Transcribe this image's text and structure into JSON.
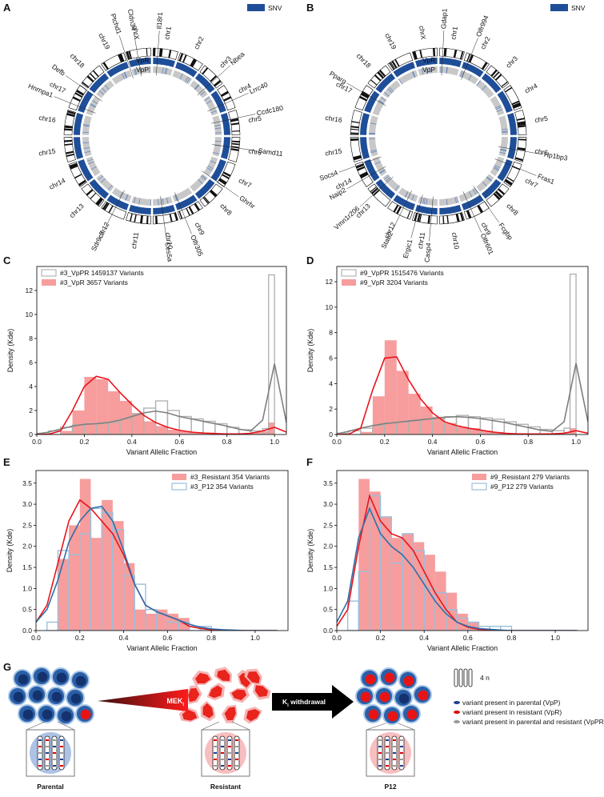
{
  "circos": [
    {
      "label": "A",
      "legend": "SNV",
      "tracks": [
        "VpR",
        "VpP"
      ],
      "chromosomes": [
        "chr1",
        "chr2",
        "chr3",
        "chr4",
        "chr5",
        "chr6",
        "chr7",
        "chr8",
        "chr9",
        "chr10",
        "chr11",
        "chr12",
        "chr13",
        "chr14",
        "chr15",
        "chr16",
        "chr17",
        "chr18",
        "chr19",
        "chrX"
      ],
      "genes": [
        "Il18r1",
        "Nbea",
        "Lrrc40",
        "Ccdc180",
        "Samd11",
        "Ghrhr",
        "Olfr305",
        "Ces5a",
        "Sdr9c7",
        "Hnrnpa1",
        "Defb",
        "Ptchd1",
        "Cldn34"
      ]
    },
    {
      "label": "B",
      "legend": "SNV",
      "tracks": [
        "VpR",
        "VpP"
      ],
      "chromosomes": [
        "chr1",
        "chr2",
        "chr3",
        "chr4",
        "chr5",
        "chr6",
        "chr7",
        "chr8",
        "chr9",
        "chr10",
        "chr11",
        "chr12",
        "chr13",
        "chr14",
        "chr15",
        "chr16",
        "chr17",
        "chr18",
        "chr19",
        "chrX"
      ],
      "genes": [
        "Gdap1",
        "Olfr994",
        "Hp1bp3",
        "Fras1",
        "Fcgbp",
        "Olfr601",
        "Casp4",
        "Ergic1",
        "Stab2",
        "Vmn1r206",
        "Naip2",
        "Socs4",
        "Pparg"
      ]
    }
  ],
  "chart_data": [
    {
      "type": "histogram",
      "label": "C",
      "xlabel": "Variant Allelic Fraction",
      "ylabel": "Density (Kde)",
      "xlim": [
        0,
        1.05
      ],
      "xticks": [
        {
          "value": 0,
          "label": "0.0"
        },
        0.2,
        0.4,
        0.6,
        0.8,
        {
          "value": 1,
          "label": "1.0"
        }
      ],
      "ylim": [
        0,
        14
      ],
      "yticks": [
        0,
        2,
        4,
        6,
        8,
        10,
        12
      ],
      "legend": "upper left",
      "bins": [
        0,
        0.05,
        0.1,
        0.15,
        0.2,
        0.25,
        0.3,
        0.35,
        0.4,
        0.45,
        0.5,
        0.55,
        0.6,
        0.65,
        0.7,
        0.75,
        0.8,
        0.85,
        0.9,
        0.95,
        0.975,
        1.0
      ],
      "series": [
        {
          "name": "#3_VpPR 1459137 Variants",
          "color": "#b3b3b3",
          "style": "step",
          "values": [
            0.1,
            0.3,
            0.6,
            0.8,
            0.9,
            0.9,
            1.0,
            1.3,
            1.7,
            2.2,
            2.8,
            2.0,
            1.5,
            1.3,
            1.1,
            0.9,
            0.6,
            0.4,
            0.3,
            0.5,
            13.3
          ]
        },
        {
          "name": "#3_VpR 3657 Variants",
          "color": "#f47c7c",
          "style": "filled",
          "values": [
            0,
            0,
            0.3,
            2.0,
            4.8,
            4.6,
            3.6,
            2.8,
            1.8,
            1.1,
            0.7,
            0.4,
            0.3,
            0.2,
            0.15,
            0.1,
            0.1,
            0.1,
            0.2,
            0.3,
            1.0
          ]
        }
      ],
      "kde_x": [
        0,
        0.05,
        0.1,
        0.15,
        0.2,
        0.25,
        0.3,
        0.35,
        0.4,
        0.45,
        0.5,
        0.55,
        0.6,
        0.65,
        0.7,
        0.75,
        0.8,
        0.85,
        0.9,
        0.95,
        1.0,
        1.05,
        1.1
      ],
      "kde": [
        {
          "color": "#7f7f7f",
          "values": [
            0.05,
            0.2,
            0.45,
            0.7,
            0.85,
            0.9,
            1.0,
            1.2,
            1.5,
            1.8,
            1.95,
            1.8,
            1.5,
            1.3,
            1.1,
            0.9,
            0.7,
            0.45,
            0.3,
            1.2,
            5.9,
            1.0,
            0.05
          ]
        },
        {
          "color": "#e8141c",
          "values": [
            0,
            0.02,
            0.3,
            2.0,
            4.0,
            4.85,
            4.6,
            3.5,
            2.5,
            1.6,
            1.0,
            0.6,
            0.35,
            0.2,
            0.12,
            0.08,
            0.05,
            0.05,
            0.1,
            0.3,
            0.6,
            0.2,
            0
          ]
        }
      ]
    },
    {
      "type": "histogram",
      "label": "D",
      "xlabel": "Variant Allelic Fraction",
      "ylabel": "Density (Kde)",
      "xlim": [
        0,
        1.05
      ],
      "xticks": [
        {
          "value": 0,
          "label": "0.0"
        },
        0.2,
        0.4,
        0.6,
        0.8,
        {
          "value": 1,
          "label": "1.0"
        }
      ],
      "ylim": [
        0,
        13.2
      ],
      "yticks": [
        0,
        2,
        4,
        6,
        8,
        10,
        12
      ],
      "legend": "upper left",
      "bins": [
        0,
        0.05,
        0.1,
        0.15,
        0.2,
        0.25,
        0.3,
        0.35,
        0.4,
        0.45,
        0.5,
        0.55,
        0.6,
        0.65,
        0.7,
        0.75,
        0.8,
        0.85,
        0.9,
        0.95,
        0.975,
        1.0
      ],
      "series": [
        {
          "name": "#9_VpPR 1515476 Variants",
          "color": "#b3b3b3",
          "style": "step",
          "values": [
            0.1,
            0.3,
            0.5,
            0.7,
            0.9,
            1.0,
            1.1,
            1.2,
            1.3,
            1.4,
            1.5,
            1.4,
            1.3,
            1.2,
            1.0,
            0.8,
            0.6,
            0.4,
            0.3,
            0.5,
            12.6
          ]
        },
        {
          "name": "#9_VpR 3204 Variants",
          "color": "#f47c7c",
          "style": "filled",
          "values": [
            0,
            0,
            0.2,
            3.0,
            7.4,
            5.0,
            3.2,
            2.2,
            1.4,
            0.9,
            0.6,
            0.5,
            0.3,
            0.2,
            0.1,
            0.1,
            0.1,
            0.1,
            0.1,
            0.2,
            0.5
          ]
        }
      ],
      "kde_x": [
        0,
        0.05,
        0.1,
        0.15,
        0.2,
        0.25,
        0.3,
        0.35,
        0.4,
        0.45,
        0.5,
        0.55,
        0.6,
        0.65,
        0.7,
        0.75,
        0.8,
        0.85,
        0.9,
        0.95,
        1.0,
        1.05,
        1.1
      ],
      "kde": [
        {
          "color": "#7f7f7f",
          "values": [
            0.05,
            0.25,
            0.5,
            0.7,
            0.85,
            0.95,
            1.05,
            1.15,
            1.25,
            1.35,
            1.4,
            1.35,
            1.25,
            1.1,
            0.95,
            0.75,
            0.55,
            0.35,
            0.25,
            1.0,
            5.6,
            1.0,
            0.05
          ]
        },
        {
          "color": "#e8141c",
          "values": [
            0,
            0.02,
            0.5,
            3.5,
            6.0,
            6.1,
            4.3,
            2.8,
            1.7,
            1.0,
            0.7,
            0.5,
            0.35,
            0.2,
            0.1,
            0.05,
            0.04,
            0.04,
            0.05,
            0.1,
            0.3,
            0.1,
            0
          ]
        }
      ]
    },
    {
      "type": "histogram",
      "label": "E",
      "xlabel": "Variant Allelic Fraction",
      "ylabel": "Density (Kde)",
      "xlim": [
        0,
        1.15
      ],
      "xticks": [
        {
          "value": 0,
          "label": "0.0"
        },
        0.2,
        0.4,
        0.6,
        0.8,
        {
          "value": 1,
          "label": "1.0"
        }
      ],
      "ylim": [
        0,
        3.8
      ],
      "yticks": [
        {
          "value": 0,
          "label": "0.0"
        },
        0.5,
        {
          "value": 1,
          "label": "1.0"
        },
        1.5,
        {
          "value": 2,
          "label": "2.0"
        },
        2.5,
        {
          "value": 3,
          "label": "3.0"
        },
        3.5
      ],
      "legend": "upper right",
      "bins": [
        0.05,
        0.1,
        0.15,
        0.2,
        0.25,
        0.3,
        0.35,
        0.4,
        0.45,
        0.5,
        0.55,
        0.6,
        0.65,
        0.7,
        0.75,
        0.8
      ],
      "series": [
        {
          "name": "#3_Resistant 354 Variants",
          "color": "#f47c7c",
          "style": "filled",
          "values": [
            0,
            1.7,
            2.5,
            3.6,
            2.2,
            3.1,
            2.6,
            1.6,
            0.5,
            0.4,
            0.5,
            0.4,
            0.3,
            0,
            0
          ]
        },
        {
          "name": "#3_P12 354 Variants",
          "color": "#9bbfdc",
          "style": "step",
          "values": [
            0.2,
            1.9,
            1.8,
            2.3,
            2.9,
            2.8,
            2.4,
            1.3,
            1.1,
            0.5,
            0.4,
            0.2,
            0.2,
            0.1,
            0.1
          ]
        }
      ],
      "kde_x": [
        0,
        0.05,
        0.1,
        0.15,
        0.2,
        0.25,
        0.3,
        0.35,
        0.4,
        0.45,
        0.5,
        0.55,
        0.6,
        0.65,
        0.7,
        0.75,
        0.8,
        0.85,
        0.9,
        0.95,
        1.0,
        1.05,
        1.1
      ],
      "kde": [
        {
          "color": "#e8141c",
          "values": [
            0.2,
            0.6,
            1.6,
            2.6,
            3.1,
            2.9,
            2.6,
            2.3,
            1.8,
            1.1,
            0.6,
            0.45,
            0.35,
            0.25,
            0.1,
            0.05,
            0.02,
            0,
            0,
            0,
            0,
            0,
            0
          ]
        },
        {
          "color": "#2f6fa8",
          "values": [
            0.2,
            0.5,
            1.2,
            2.1,
            2.6,
            2.9,
            2.95,
            2.6,
            1.9,
            1.1,
            0.6,
            0.45,
            0.35,
            0.25,
            0.15,
            0.08,
            0.04,
            0.02,
            0.01,
            0,
            0,
            0,
            0
          ]
        }
      ]
    },
    {
      "type": "histogram",
      "label": "F",
      "xlabel": "Variant Allelic Fraction",
      "ylabel": "Density (Kde)",
      "xlim": [
        0,
        1.15
      ],
      "xticks": [
        {
          "value": 0,
          "label": "0.0"
        },
        0.2,
        0.4,
        0.6,
        0.8,
        {
          "value": 1,
          "label": "1.0"
        }
      ],
      "ylim": [
        0,
        3.8
      ],
      "yticks": [
        {
          "value": 0,
          "label": "0.0"
        },
        0.5,
        {
          "value": 1,
          "label": "1.0"
        },
        1.5,
        {
          "value": 2,
          "label": "2.0"
        },
        2.5,
        {
          "value": 3,
          "label": "3.0"
        },
        3.5
      ],
      "legend": "upper right",
      "bins": [
        0.05,
        0.1,
        0.15,
        0.2,
        0.25,
        0.3,
        0.35,
        0.4,
        0.45,
        0.5,
        0.55,
        0.6,
        0.65,
        0.7,
        0.75,
        0.8
      ],
      "series": [
        {
          "name": "#9_Resistant 279 Variants",
          "color": "#f47c7c",
          "style": "filled",
          "values": [
            0,
            3.6,
            3.3,
            2.7,
            2.2,
            2.3,
            2.1,
            1.8,
            1.4,
            0.9,
            0.4,
            0.2,
            0,
            0,
            0
          ]
        },
        {
          "name": "#9_P12 279 Variants",
          "color": "#9bbfdc",
          "style": "step",
          "values": [
            0.7,
            1.4,
            3.2,
            2.7,
            1.6,
            2.3,
            1.9,
            1.0,
            0.9,
            0.5,
            0.3,
            0.2,
            0.1,
            0.1,
            0.1
          ]
        }
      ],
      "kde_x": [
        0,
        0.05,
        0.1,
        0.15,
        0.2,
        0.25,
        0.3,
        0.35,
        0.4,
        0.45,
        0.5,
        0.55,
        0.6,
        0.65,
        0.7,
        0.75,
        0.8,
        0.85,
        0.9,
        0.95,
        1.0,
        1.05,
        1.1
      ],
      "kde": [
        {
          "color": "#e8141c",
          "values": [
            0.1,
            0.5,
            2.0,
            3.2,
            2.6,
            2.3,
            2.2,
            1.9,
            1.4,
            0.9,
            0.5,
            0.2,
            0.08,
            0.03,
            0.01,
            0,
            0,
            0,
            0,
            0,
            0,
            0,
            0
          ]
        },
        {
          "color": "#2f6fa8",
          "values": [
            0.2,
            0.7,
            2.2,
            2.9,
            2.3,
            2.0,
            1.8,
            1.5,
            1.1,
            0.7,
            0.4,
            0.2,
            0.1,
            0.05,
            0.03,
            0.01,
            0,
            0,
            0,
            0,
            0,
            0,
            0
          ]
        }
      ]
    }
  ],
  "diagram": {
    "label": "G",
    "stages": [
      "Parental",
      "Resistant",
      "P12"
    ],
    "treatment": {
      "base": "MEK",
      "sub": "i"
    },
    "withdrawal": {
      "base": "K",
      "sub": "i",
      "rest": " withdrawal"
    },
    "ploidy": "4 n",
    "legend": [
      {
        "text": "variant present in parental (VpP)",
        "color": "#1f3f8f"
      },
      {
        "text": "variant present in resistant (VpR)",
        "color": "#e00000"
      },
      {
        "text": "variant present in parental and resistant (VpPR)",
        "color": "#9a9a9a"
      }
    ]
  }
}
